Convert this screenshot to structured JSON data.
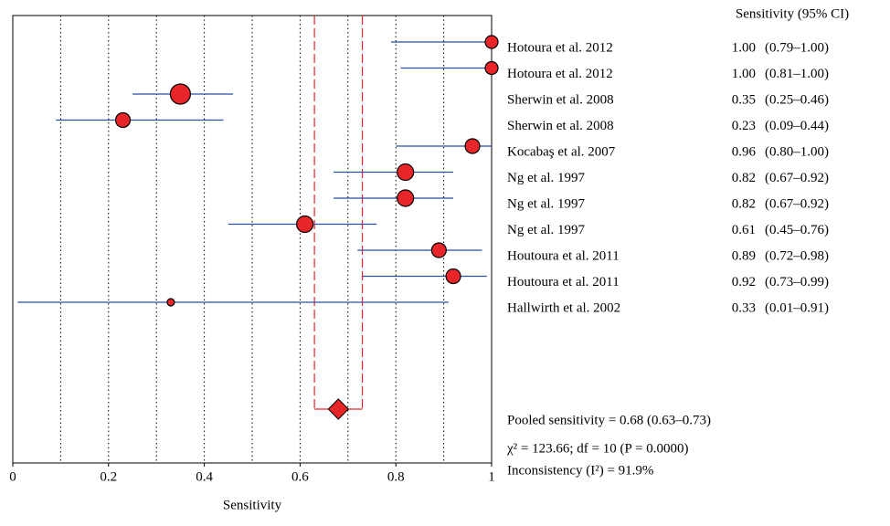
{
  "chart_data": {
    "type": "forest",
    "x_label": "Sensitivity",
    "column_header": "Sensitivity (95% CI)",
    "xlim": [
      0,
      1
    ],
    "xticks": [
      0,
      0.2,
      0.4,
      0.6,
      0.8,
      1
    ],
    "grid_lines": [
      0.1,
      0.2,
      0.3,
      0.4,
      0.5,
      0.6,
      0.7,
      0.8,
      0.9
    ],
    "color": "#e8262a",
    "ci_color": "#2b4fa6",
    "pooled_color": "#e8262a",
    "categories": [
      "Hotoura et al. 2012",
      "Hotoura et al. 2012",
      "Sherwin et al. 2008",
      "Sherwin et al. 2008",
      "Kocabaş et al. 2007",
      "Ng et al. 1997",
      "Ng et al. 1997",
      "Ng et al. 1997",
      "Houtoura et al. 2011",
      "Houtoura et al. 2011",
      "Hallwirth et al. 2002"
    ],
    "values": [
      1.0,
      1.0,
      0.35,
      0.23,
      0.96,
      0.82,
      0.82,
      0.61,
      0.89,
      0.92,
      0.33
    ],
    "value_labels": [
      "1.00",
      "1.00",
      "0.35",
      "0.23",
      "0.96",
      "0.82",
      "0.82",
      "0.61",
      "0.89",
      "0.92",
      "0.33"
    ],
    "lower": [
      0.79,
      0.81,
      0.25,
      0.09,
      0.8,
      0.67,
      0.67,
      0.45,
      0.72,
      0.73,
      0.01
    ],
    "upper": [
      1.0,
      1.0,
      0.46,
      0.44,
      1.0,
      0.92,
      0.92,
      0.76,
      0.98,
      0.99,
      0.91
    ],
    "ci_labels": [
      "(0.79–1.00)",
      "(0.81–1.00)",
      "(0.25–0.46)",
      "(0.09–0.44)",
      "(0.80–1.00)",
      "(0.67–0.92)",
      "(0.67–0.92)",
      "(0.45–0.76)",
      "(0.72–0.98)",
      "(0.73–0.99)",
      "(0.01–0.91)"
    ],
    "weights": [
      7,
      7,
      11,
      8,
      8,
      9,
      9,
      9,
      8,
      8,
      4
    ],
    "pooled": {
      "value": 0.68,
      "lower": 0.63,
      "upper": 0.73,
      "label": "Pooled sensitivity = 0.68 (0.63–0.73)"
    },
    "heterogeneity": "χ² = 123.66; df = 10 (P = 0.0000)",
    "inconsistency": "Inconsistency (I²) = 91.9%"
  }
}
